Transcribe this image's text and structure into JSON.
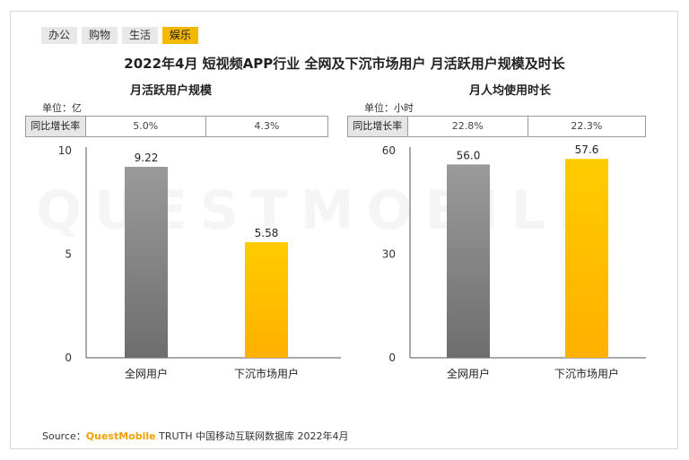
{
  "tabs": [
    {
      "label": "办公",
      "active": false
    },
    {
      "label": "购物",
      "active": false
    },
    {
      "label": "生活",
      "active": false
    },
    {
      "label": "娱乐",
      "active": true
    }
  ],
  "title": "2022年4月 短视频APP行业 全网及下沉市场用户 月活跃用户规模及时长",
  "growth_label": "同比增长率",
  "colors": {
    "gray": "#8c8c8c",
    "yellow": "#ffc000",
    "accent": "#f5b800"
  },
  "chart_data": [
    {
      "type": "bar",
      "title": "月活跃用户规模",
      "unit": "单位：亿",
      "categories": [
        "全网用户",
        "下沉市场用户"
      ],
      "values": [
        9.22,
        5.58
      ],
      "value_labels": [
        "9.22",
        "5.58"
      ],
      "yticks": [
        "0",
        "5",
        "10"
      ],
      "ylim": [
        0,
        10
      ],
      "growth": [
        "5.0%",
        "4.3%"
      ]
    },
    {
      "type": "bar",
      "title": "月人均使用时长",
      "unit": "单位：小时",
      "categories": [
        "全网用户",
        "下沉市场用户"
      ],
      "values": [
        56.0,
        57.6
      ],
      "value_labels": [
        "56.0",
        "57.6"
      ],
      "yticks": [
        "0",
        "30",
        "60"
      ],
      "ylim": [
        0,
        60
      ],
      "growth": [
        "22.8%",
        "22.3%"
      ]
    }
  ],
  "source": {
    "prefix": "Source：",
    "brand": "QuestMobile",
    "text": "TRUTH 中国移动互联网数据库 2022年4月"
  },
  "watermark": "QUESTMOBILE"
}
